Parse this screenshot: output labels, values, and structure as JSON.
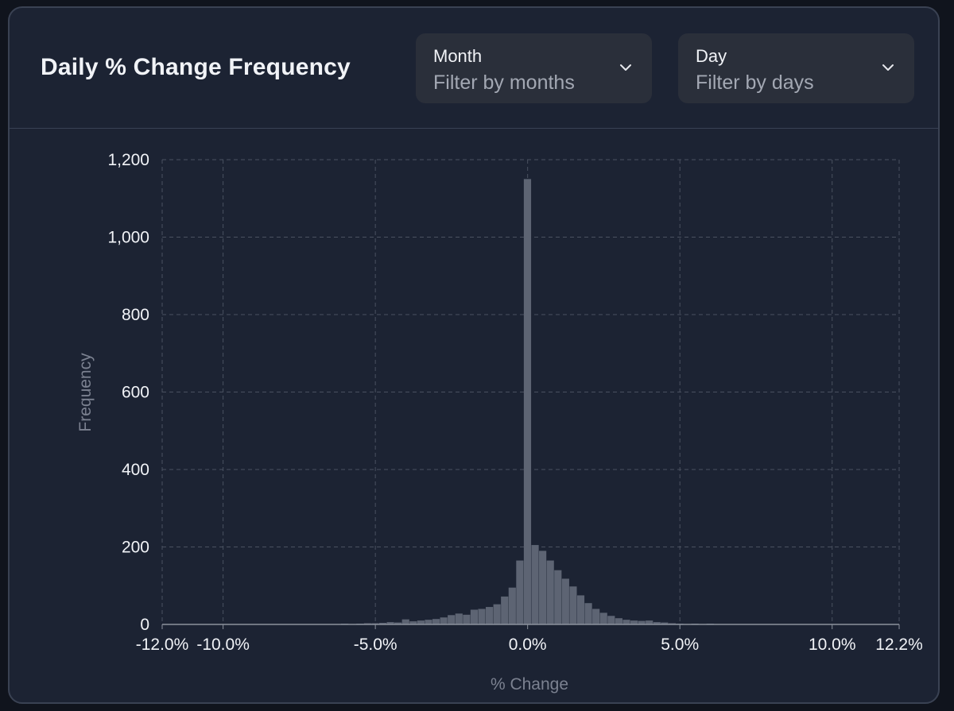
{
  "card": {
    "title": "Daily % Change Frequency",
    "filters": {
      "month": {
        "label": "Month",
        "placeholder": "Filter by months"
      },
      "day": {
        "label": "Day",
        "placeholder": "Filter by days"
      }
    }
  },
  "colors": {
    "background": "#1c2333",
    "bar": "#5d6473",
    "grid": "#4a5160",
    "text": "#f1f3f7",
    "muted_text": "#7b8190"
  },
  "chart_data": {
    "type": "bar",
    "xlabel": "% Change",
    "ylabel": "Frequency",
    "xlim": [
      -12.0,
      12.2
    ],
    "ylim": [
      0,
      1200
    ],
    "x_ticks": [
      -12.0,
      -10.0,
      -5.0,
      0.0,
      5.0,
      10.0,
      12.2
    ],
    "x_tick_labels": [
      "-12.0%",
      "-10.0%",
      "-5.0%",
      "0.0%",
      "5.0%",
      "10.0%",
      "12.2%"
    ],
    "y_ticks": [
      0,
      200,
      400,
      600,
      800,
      1000,
      1200
    ],
    "y_tick_labels": [
      "0",
      "200",
      "400",
      "600",
      "800",
      "1,000",
      "1,200"
    ],
    "grid": true,
    "bin_width": 0.25,
    "bins": [
      {
        "x": -11.5,
        "y": 1
      },
      {
        "x": -11.0,
        "y": 1
      },
      {
        "x": -8.5,
        "y": 1
      },
      {
        "x": -7.5,
        "y": 1
      },
      {
        "x": -6.25,
        "y": 1
      },
      {
        "x": -6.0,
        "y": 2
      },
      {
        "x": -5.5,
        "y": 2
      },
      {
        "x": -5.25,
        "y": 3
      },
      {
        "x": -5.0,
        "y": 3
      },
      {
        "x": -4.75,
        "y": 4
      },
      {
        "x": -4.5,
        "y": 6
      },
      {
        "x": -4.25,
        "y": 5
      },
      {
        "x": -4.0,
        "y": 13
      },
      {
        "x": -3.75,
        "y": 8
      },
      {
        "x": -3.5,
        "y": 10
      },
      {
        "x": -3.25,
        "y": 12
      },
      {
        "x": -3.0,
        "y": 14
      },
      {
        "x": -2.75,
        "y": 18
      },
      {
        "x": -2.5,
        "y": 24
      },
      {
        "x": -2.25,
        "y": 28
      },
      {
        "x": -2.0,
        "y": 25
      },
      {
        "x": -1.75,
        "y": 38
      },
      {
        "x": -1.5,
        "y": 40
      },
      {
        "x": -1.25,
        "y": 45
      },
      {
        "x": -1.0,
        "y": 52
      },
      {
        "x": -0.75,
        "y": 72
      },
      {
        "x": -0.5,
        "y": 95
      },
      {
        "x": -0.25,
        "y": 165
      },
      {
        "x": 0.0,
        "y": 1150
      },
      {
        "x": 0.25,
        "y": 205
      },
      {
        "x": 0.5,
        "y": 190
      },
      {
        "x": 0.75,
        "y": 165
      },
      {
        "x": 1.0,
        "y": 140
      },
      {
        "x": 1.25,
        "y": 118
      },
      {
        "x": 1.5,
        "y": 98
      },
      {
        "x": 1.75,
        "y": 75
      },
      {
        "x": 2.0,
        "y": 55
      },
      {
        "x": 2.25,
        "y": 40
      },
      {
        "x": 2.5,
        "y": 30
      },
      {
        "x": 2.75,
        "y": 22
      },
      {
        "x": 3.0,
        "y": 16
      },
      {
        "x": 3.25,
        "y": 12
      },
      {
        "x": 3.5,
        "y": 10
      },
      {
        "x": 3.75,
        "y": 9
      },
      {
        "x": 4.0,
        "y": 10
      },
      {
        "x": 4.25,
        "y": 6
      },
      {
        "x": 4.5,
        "y": 5
      },
      {
        "x": 4.75,
        "y": 3
      },
      {
        "x": 5.0,
        "y": 2
      },
      {
        "x": 5.5,
        "y": 2
      },
      {
        "x": 6.0,
        "y": 2
      },
      {
        "x": 6.5,
        "y": 1
      },
      {
        "x": 7.0,
        "y": 1
      },
      {
        "x": 8.0,
        "y": 1
      },
      {
        "x": 9.0,
        "y": 1
      },
      {
        "x": 10.5,
        "y": 1
      }
    ]
  }
}
